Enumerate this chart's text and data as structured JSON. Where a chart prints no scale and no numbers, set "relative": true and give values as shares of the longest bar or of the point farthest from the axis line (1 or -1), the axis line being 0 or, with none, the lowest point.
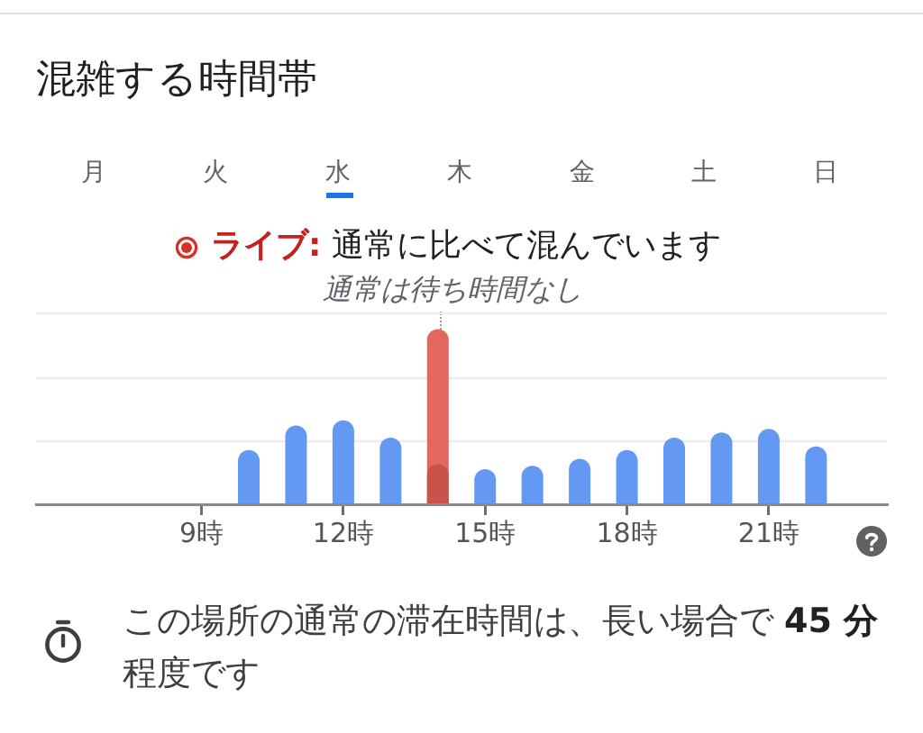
{
  "chart_data": {
    "type": "bar",
    "title": "混雑する時間帯",
    "categories": [
      null,
      null,
      null,
      "9時",
      null,
      null,
      "12時",
      null,
      null,
      "15時",
      null,
      null,
      "18時",
      null,
      null,
      "21時",
      null,
      null
    ],
    "series": [
      {
        "color": "#6399f2",
        "colors": [
          "#6399f2",
          "#6399f2",
          "#6399f2",
          "#6399f2",
          "#6399f2",
          "#6399f2",
          "#6399f2",
          "#6399f2",
          "#c9534a",
          "#6399f2",
          "#6399f2",
          "#6399f2",
          "#6399f2",
          "#6399f2",
          "#6399f2",
          "#6399f2",
          "#6399f2",
          "#6399f2"
        ],
        "values": [
          null,
          null,
          null,
          null,
          0.31,
          0.45,
          0.48,
          0.38,
          0.23,
          0.2,
          0.22,
          0.26,
          0.31,
          0.38,
          0.41,
          0.43,
          0.33,
          null
        ]
      },
      {
        "color": "#e2675c",
        "values": [
          null,
          null,
          null,
          null,
          null,
          null,
          null,
          null,
          1,
          null,
          null,
          null,
          null,
          null,
          null,
          null,
          null,
          null
        ]
      }
    ],
    "relative": true,
    "ref_lines": [
      {
        "axis": "y",
        "value": 0.36,
        "color": "#ececec"
      },
      {
        "axis": "y",
        "value": 0.72,
        "color": "#ececec"
      },
      {
        "axis": "y",
        "value": 1.09,
        "color": "#ececec"
      }
    ],
    "annotations": [
      "月",
      "火",
      "水",
      "木",
      "金",
      "土",
      "日",
      "ライブ:",
      "通常に比べて混んでいます",
      "通常は待ち時間なし",
      "この場所の通常の滞在時間は、長い場合で",
      "45 分",
      "程度です"
    ]
  }
}
